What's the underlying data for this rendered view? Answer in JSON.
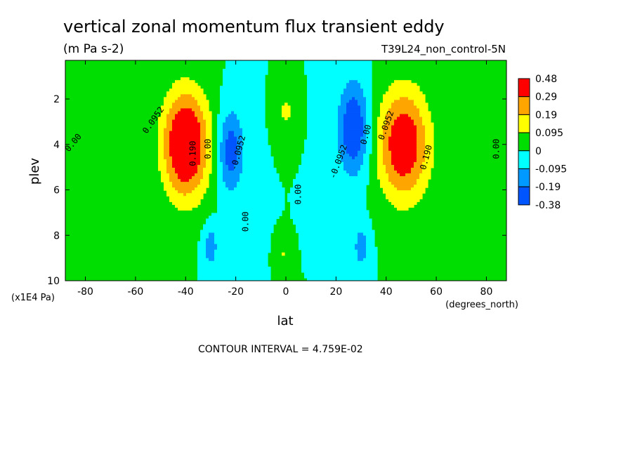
{
  "chart_data": {
    "type": "contour",
    "title": "vertical zonal momentum flux transient eddy",
    "units": "(m Pa s-2)",
    "dataset": "T39L24_non_control-5N",
    "xlabel": "lat",
    "x_units": "(degrees_north)",
    "ylabel": "plev",
    "y_units": "(x1E4 Pa)",
    "xlim": [
      -88,
      88
    ],
    "ylim": [
      10,
      0.3
    ],
    "x_ticks": [
      -80,
      -60,
      -40,
      -20,
      0,
      20,
      40,
      60,
      80
    ],
    "x_tick_labels": [
      "-80",
      "-60",
      "-40",
      "-20",
      "0",
      "20",
      "40",
      "60",
      "80"
    ],
    "y_ticks": [
      2,
      4,
      6,
      8,
      10
    ],
    "y_tick_labels": [
      "2",
      "4",
      "6",
      "8",
      "10"
    ],
    "contour_interval_text": "CONTOUR INTERVAL = 4.759E-02",
    "colorbar": {
      "labels": [
        "0.48",
        "0.29",
        "0.19",
        "0.095",
        "0",
        "-0.095",
        "-0.19",
        "-0.38"
      ],
      "colors": [
        "#ff0000",
        "#ffa500",
        "#ffff00",
        "#00dd00",
        "#00ffff",
        "#0099ff",
        "#0055ff"
      ]
    },
    "background_color": "#00dd00",
    "features": [
      {
        "lat": -40,
        "plev": 4.0,
        "peak": 0.48,
        "lat_width": 9,
        "plev_width": 2.3
      },
      {
        "lat": 47,
        "plev": 4.0,
        "peak": 0.4,
        "lat_width": 10,
        "plev_width": 2.4
      },
      {
        "lat": -22,
        "plev": 4.3,
        "peak": -0.25,
        "lat_width": 5,
        "plev_width": 1.8
      },
      {
        "lat": 27,
        "plev": 3.3,
        "peak": -0.3,
        "lat_width": 6,
        "plev_width": 2.0
      },
      {
        "lat": -30,
        "plev": 8.5,
        "peak": -0.15,
        "lat_width": 3,
        "plev_width": 1.0
      },
      {
        "lat": 30,
        "plev": 8.5,
        "peak": -0.15,
        "lat_width": 3,
        "plev_width": 1.0
      },
      {
        "lat": 0,
        "plev": 2.5,
        "peak": 0.12,
        "lat_width": 3,
        "plev_width": 0.8
      },
      {
        "lat": -1,
        "plev": 8.8,
        "peak": 0.1,
        "lat_width": 1.5,
        "plev_width": 0.4
      }
    ],
    "contour_labels": [
      {
        "text": "0.00",
        "lat": -84,
        "plev": 4.0,
        "angle": -50
      },
      {
        "text": "0.0952",
        "lat": -52,
        "plev": 3.0,
        "angle": -55
      },
      {
        "text": "0.190",
        "lat": -36,
        "plev": 4.4,
        "angle": -90
      },
      {
        "text": "0.00",
        "lat": -30,
        "plev": 4.2,
        "angle": -90
      },
      {
        "text": "-0.0952",
        "lat": -18,
        "plev": 4.4,
        "angle": -75
      },
      {
        "text": "0.00",
        "lat": -15,
        "plev": 7.4,
        "angle": -90
      },
      {
        "text": "0.00",
        "lat": 6,
        "plev": 6.2,
        "angle": -90
      },
      {
        "text": "-0.0952",
        "lat": 22,
        "plev": 4.8,
        "angle": -70
      },
      {
        "text": "0.00",
        "lat": 33,
        "plev": 3.6,
        "angle": -75
      },
      {
        "text": "0.0952",
        "lat": 41,
        "plev": 3.2,
        "angle": -70
      },
      {
        "text": "0.190",
        "lat": 57,
        "plev": 4.6,
        "angle": -75
      },
      {
        "text": "0.00",
        "lat": 85,
        "plev": 4.2,
        "angle": -90
      }
    ]
  }
}
